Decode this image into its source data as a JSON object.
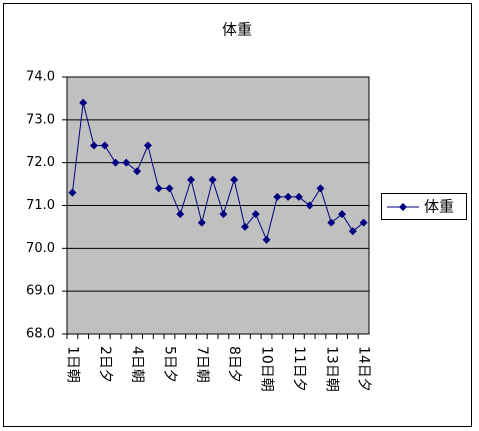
{
  "chart_data": {
    "type": "line",
    "title": "体重",
    "categories": [
      "1日朝",
      null,
      null,
      "2日夕",
      null,
      null,
      "4日朝",
      null,
      null,
      "5日夕",
      null,
      null,
      "7日朝",
      null,
      null,
      "8日夕",
      null,
      null,
      "10日朝",
      null,
      null,
      "11日夕",
      null,
      null,
      "13日朝",
      null,
      null,
      "14日夕"
    ],
    "series": [
      {
        "name": "体重",
        "color": "#000080",
        "values": [
          71.3,
          73.4,
          72.4,
          72.4,
          72.0,
          72.0,
          71.8,
          72.4,
          71.4,
          71.4,
          70.8,
          71.6,
          70.6,
          71.6,
          70.8,
          71.6,
          70.5,
          70.8,
          70.2,
          71.2,
          71.2,
          71.2,
          71.0,
          71.4,
          70.6,
          70.8,
          70.4,
          70.6
        ]
      }
    ],
    "ylim": [
      68,
      74
    ],
    "yticks": [
      {
        "value": 68,
        "label": "68.0"
      },
      {
        "value": 69,
        "label": "69.0"
      },
      {
        "value": 70,
        "label": "70.0"
      },
      {
        "value": 71,
        "label": "71.0"
      },
      {
        "value": 72,
        "label": "72.0"
      },
      {
        "value": 73,
        "label": "73.0"
      },
      {
        "value": 74,
        "label": "74.0"
      }
    ],
    "grid": true,
    "plot_background": "#c0c0c0",
    "legend": "right"
  }
}
